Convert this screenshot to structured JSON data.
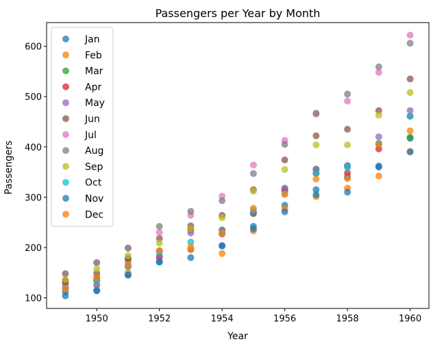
{
  "chart_data": {
    "type": "scatter",
    "title": "Passengers per Year by Month",
    "xlabel": "Year",
    "ylabel": "Passengers",
    "xlim": [
      1948.4,
      1960.6
    ],
    "ylim": [
      79,
      647
    ],
    "xticks": [
      1950,
      1952,
      1954,
      1956,
      1958,
      1960
    ],
    "yticks": [
      100,
      200,
      300,
      400,
      500,
      600
    ],
    "grid": false,
    "legend_position": "top-left",
    "x": [
      1949,
      1950,
      1951,
      1952,
      1953,
      1954,
      1955,
      1956,
      1957,
      1958,
      1959,
      1960
    ],
    "series": [
      {
        "name": "Jan",
        "color": "#1f77b4",
        "values": [
          112,
          115,
          145,
          171,
          196,
          204,
          242,
          284,
          315,
          340,
          360,
          417
        ]
      },
      {
        "name": "Feb",
        "color": "#ff7f0e",
        "values": [
          118,
          126,
          150,
          180,
          196,
          188,
          233,
          277,
          301,
          318,
          342,
          391
        ]
      },
      {
        "name": "Mar",
        "color": "#2ca02c",
        "values": [
          132,
          141,
          178,
          193,
          236,
          235,
          267,
          317,
          356,
          362,
          406,
          419
        ]
      },
      {
        "name": "Apr",
        "color": "#d62728",
        "values": [
          129,
          135,
          163,
          181,
          235,
          227,
          269,
          313,
          348,
          348,
          396,
          461
        ]
      },
      {
        "name": "May",
        "color": "#9467bd",
        "values": [
          121,
          125,
          172,
          183,
          229,
          234,
          270,
          318,
          355,
          363,
          420,
          472
        ]
      },
      {
        "name": "Jun",
        "color": "#8c564b",
        "values": [
          135,
          149,
          178,
          218,
          243,
          264,
          315,
          374,
          422,
          435,
          472,
          535
        ]
      },
      {
        "name": "Jul",
        "color": "#e377c2",
        "values": [
          148,
          170,
          199,
          230,
          264,
          302,
          364,
          413,
          465,
          491,
          548,
          622
        ]
      },
      {
        "name": "Aug",
        "color": "#7f7f7f",
        "values": [
          148,
          170,
          199,
          242,
          272,
          293,
          347,
          405,
          467,
          505,
          559,
          606
        ]
      },
      {
        "name": "Sep",
        "color": "#bcbd22",
        "values": [
          136,
          158,
          184,
          209,
          237,
          259,
          312,
          355,
          404,
          404,
          463,
          508
        ]
      },
      {
        "name": "Oct",
        "color": "#17becf",
        "values": [
          119,
          133,
          162,
          191,
          211,
          229,
          274,
          306,
          347,
          359,
          407,
          461
        ]
      },
      {
        "name": "Nov",
        "color": "#1f77b4",
        "values": [
          104,
          114,
          146,
          172,
          180,
          203,
          237,
          271,
          305,
          310,
          362,
          390
        ]
      },
      {
        "name": "Dec",
        "color": "#ff7f0e",
        "values": [
          118,
          140,
          166,
          194,
          201,
          229,
          278,
          306,
          336,
          337,
          405,
          432
        ]
      }
    ]
  }
}
